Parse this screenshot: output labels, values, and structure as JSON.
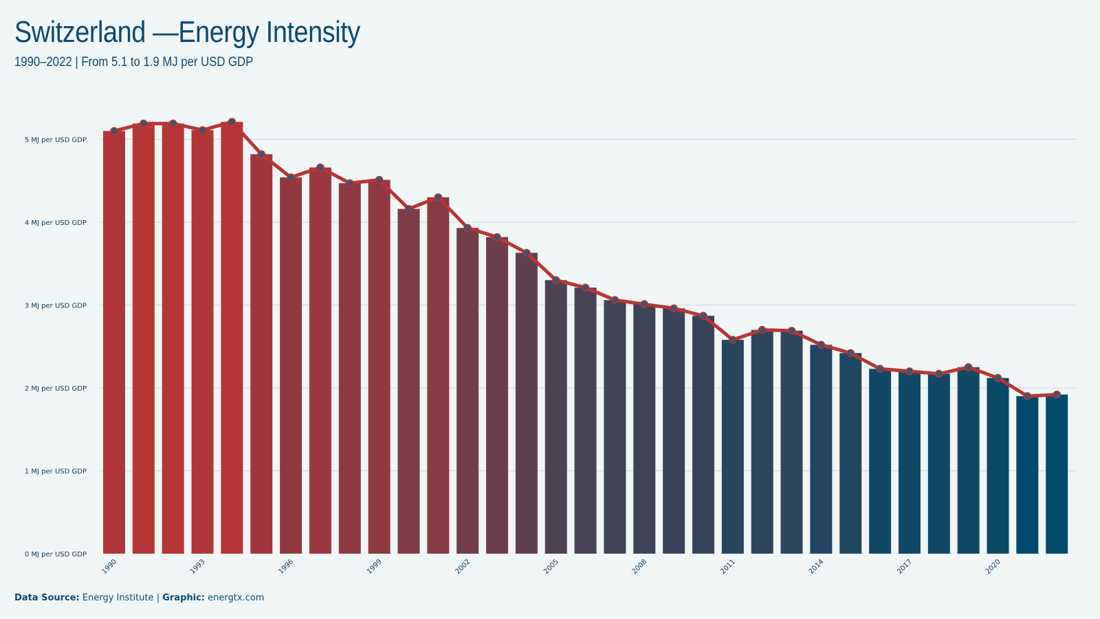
{
  "header": {
    "title": "Switzerland —Energy Intensity",
    "subtitle": "1990–2022 | From 5.1 to 1.9 MJ per USD GDP"
  },
  "footer": {
    "source_label": "Data Source:",
    "source_value": "Energy Institute",
    "separator": "|",
    "graphic_label": "Graphic:",
    "graphic_value": "energtx.com"
  },
  "colors": {
    "background": "#f0f5f5",
    "bar_start": "#b73535",
    "bar_end": "#004a6b",
    "line": "#b73535",
    "marker": "#3e5470",
    "text": "#0b4a6f"
  },
  "chart_data": {
    "type": "bar",
    "years": [
      1990,
      1991,
      1992,
      1993,
      1994,
      1995,
      1996,
      1997,
      1998,
      1999,
      2000,
      2001,
      2002,
      2003,
      2004,
      2005,
      2006,
      2007,
      2008,
      2009,
      2010,
      2011,
      2012,
      2013,
      2014,
      2015,
      2016,
      2017,
      2018,
      2019,
      2020,
      2021,
      2022
    ],
    "values": [
      5.1,
      5.19,
      5.19,
      5.11,
      5.21,
      4.82,
      4.54,
      4.66,
      4.47,
      4.51,
      4.16,
      4.3,
      3.93,
      3.82,
      3.63,
      3.3,
      3.21,
      3.06,
      3.01,
      2.96,
      2.87,
      2.58,
      2.7,
      2.69,
      2.52,
      2.42,
      2.23,
      2.2,
      2.17,
      2.25,
      2.12,
      1.9,
      1.92
    ],
    "x_tick_labels": [
      "1990",
      "1993",
      "1996",
      "1999",
      "2002",
      "2005",
      "2008",
      "2011",
      "2014",
      "2017",
      "2020"
    ],
    "y_ticks": [
      0,
      1,
      2,
      3,
      4,
      5
    ],
    "y_tick_labels": [
      "0 MJ per USD GDP",
      "1 MJ per USD GDP",
      "2 MJ per USD GDP",
      "3 MJ per USD GDP",
      "4 MJ per USD GDP",
      "5 MJ per USD GDP"
    ],
    "ylim": [
      0,
      5.2
    ],
    "grid": true,
    "overlay": "line-with-markers"
  }
}
